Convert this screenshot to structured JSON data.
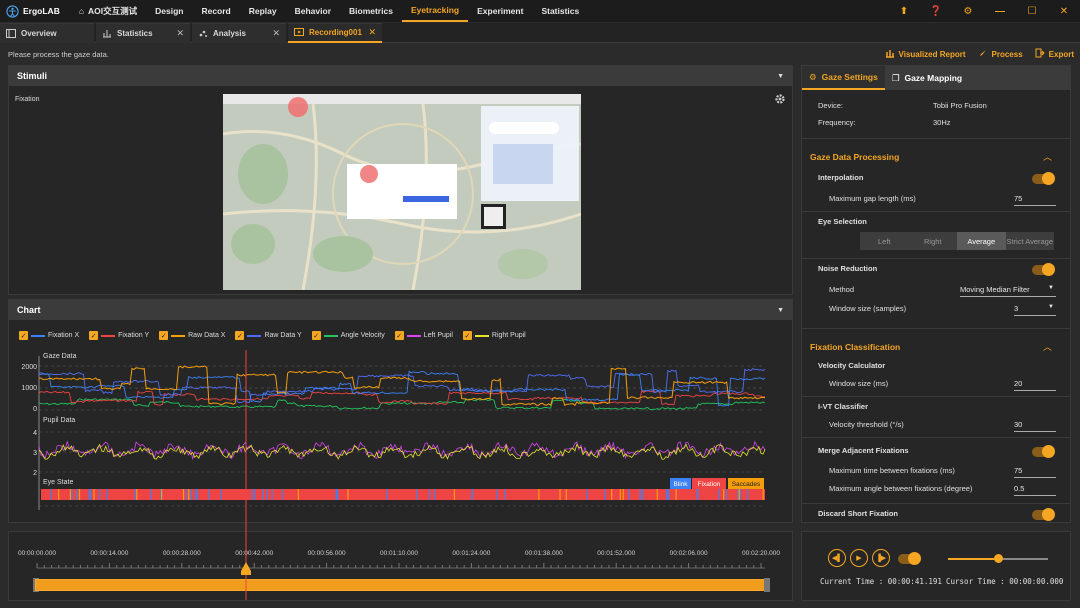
{
  "app": {
    "logo_text": "ErgoLAB",
    "menu": [
      "AOI交互测试",
      "Design",
      "Record",
      "Replay",
      "Behavior",
      "Biometrics",
      "Eyetracking",
      "Experiment",
      "Statistics"
    ],
    "active_menu": "Eyetracking"
  },
  "tabs": [
    {
      "label": "Overview",
      "icon": "overview-icon",
      "closable": false
    },
    {
      "label": "Statistics",
      "icon": "bar-chart-icon",
      "closable": true
    },
    {
      "label": "Analysis",
      "icon": "scatter-icon",
      "closable": true
    },
    {
      "label": "Recording001",
      "icon": "recording-icon",
      "closable": true,
      "active": true
    }
  ],
  "hint": "Please process the gaze data.",
  "actions": {
    "visualized_report": "Visualized Report",
    "process": "Process",
    "export": "Export"
  },
  "stimuli": {
    "title": "Stimuli",
    "sublabel": "Fixation"
  },
  "chart": {
    "title": "Chart",
    "legend": [
      {
        "name": "Fixation X",
        "color": "#3b82f6"
      },
      {
        "name": "Fixation Y",
        "color": "#ef4444"
      },
      {
        "name": "Raw Data X",
        "color": "#f59e0b"
      },
      {
        "name": "Raw Data Y",
        "color": "#4f6ef5"
      },
      {
        "name": "Angle Velocity",
        "color": "#22c55e"
      },
      {
        "name": "Left Pupil",
        "color": "#d946ef"
      },
      {
        "name": "Right Pupil",
        "color": "#e5e52a"
      }
    ],
    "gaze_label": "Gaze Data",
    "gaze_ticks": [
      "2000",
      "1000",
      "0"
    ],
    "pupil_label": "Pupil Data",
    "pupil_ticks": [
      "4",
      "3",
      "2"
    ],
    "eye_label": "Eye State",
    "eye_tags": {
      "blink": "Blink",
      "fixation": "Fixation",
      "saccades": "Saccades"
    }
  },
  "settings": {
    "tab_gaze": "Gaze Settings",
    "tab_mapping": "Gaze Mapping",
    "device_label": "Device:",
    "device": "Tobii Pro Fusion",
    "frequency_label": "Frequency:",
    "frequency": "30Hz",
    "processing_title": "Gaze Data Processing",
    "interpolation": "Interpolation",
    "max_gap_label": "Maximum gap length (ms)",
    "max_gap": "75",
    "eye_selection": "Eye Selection",
    "eye_options": [
      "Left",
      "Right",
      "Average",
      "Strict Average"
    ],
    "eye_selected": "Average",
    "noise_reduction": "Noise Reduction",
    "method_label": "Method",
    "method": "Moving Median Filter",
    "window_label": "Window size (samples)",
    "window": "3",
    "classification_title": "Fixation Classification",
    "velocity_calc": "Velocity Calculator",
    "vc_window_label": "Window size (ms)",
    "vc_window": "20",
    "ivt": "I-VT Classifier",
    "vel_threshold_label": "Velocity threshold (°/s)",
    "vel_threshold": "30",
    "merge": "Merge Adjacent Fixations",
    "max_time_label": "Maximum time between fixations (ms)",
    "max_time": "75",
    "max_angle_label": "Maximum angle between fixations (degree)",
    "max_angle": "0.5",
    "discard": "Discard Short Fixation"
  },
  "timeline": {
    "ticks": [
      "00:00:00.000",
      "00:00:14.000",
      "00:00:28.000",
      "00:00:42.000",
      "00:00:56.000",
      "00:01:10.000",
      "00:01:24.000",
      "00:01:38.000",
      "00:01:52.000",
      "00:02:06.000",
      "00:02:20.000"
    ],
    "playhead_seconds": 41.191
  },
  "player": {
    "current_time": "Current Time : 00:00:41.191",
    "cursor_time": "Cursor Time : 00:00:00.000",
    "volume": 0.5
  },
  "colors": {
    "accent": "#f5a623",
    "eye_fixation": "#ef4444",
    "eye_blink": "#3b82f6",
    "eye_saccade": "#f59e0b"
  }
}
